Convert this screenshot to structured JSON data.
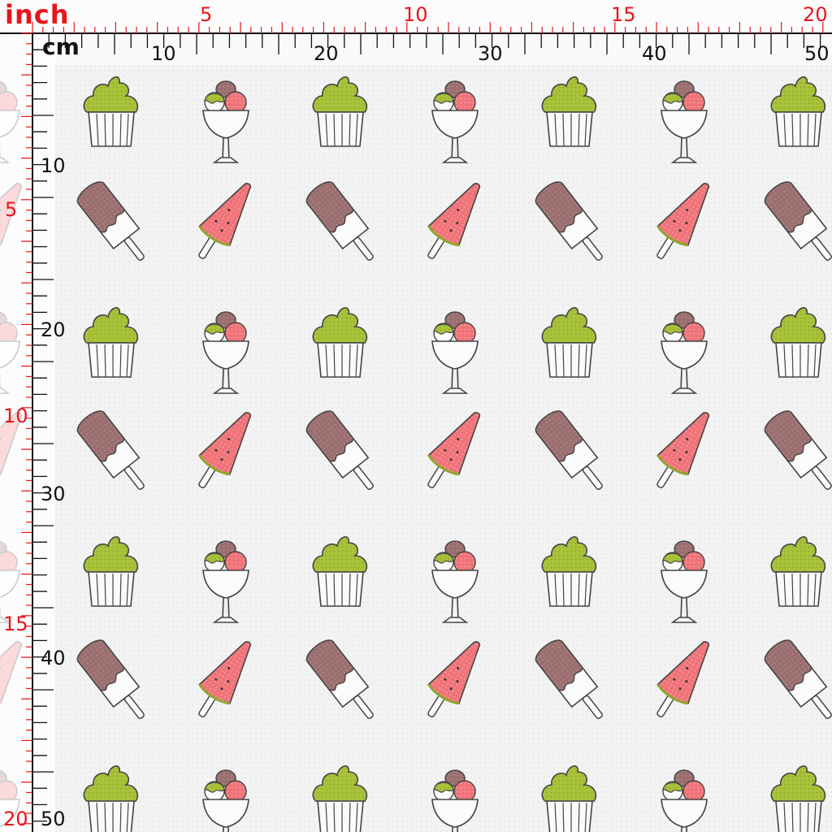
{
  "rulers": {
    "inch_label": "inch",
    "cm_label": "cm",
    "inch_color": "#e8141c",
    "cm_color": "#111111",
    "top_inch_numbers": [
      "5",
      "10",
      "15",
      "20"
    ],
    "top_cm_numbers": [
      "10",
      "20",
      "30",
      "40",
      "50"
    ],
    "left_inch_numbers": [
      "5",
      "10",
      "15",
      "20"
    ],
    "left_cm_numbers": [
      "10",
      "20",
      "30",
      "40",
      "50"
    ]
  },
  "fabric": {
    "pattern_motifs": [
      "cupcake",
      "ice-cream-sundae",
      "chocolate-popsicle",
      "watermelon-popsicle"
    ],
    "colors": {
      "background": "#f3f3f3",
      "cupcake_frosting": "#a8c23a",
      "sundae_scoop_pink": "#ef7378",
      "sundae_scoop_brown": "#9d6e6e",
      "chocolate_coating": "#9b6f6f",
      "watermelon": "#ef6f76",
      "outline": "#444444"
    }
  }
}
